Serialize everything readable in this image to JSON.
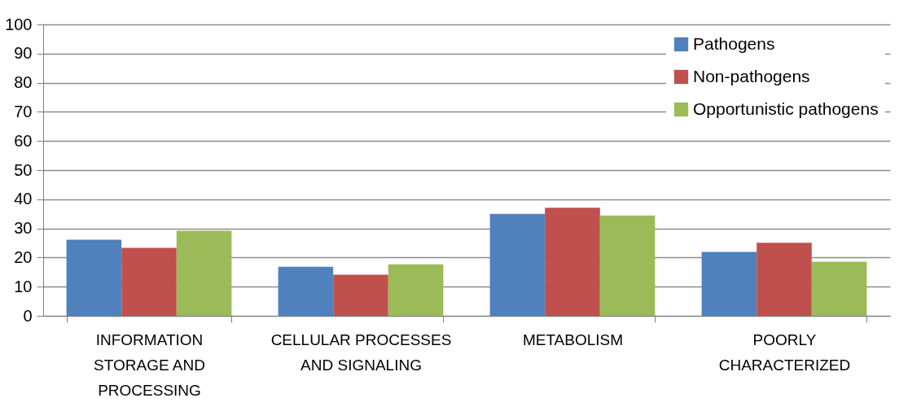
{
  "chart_data": {
    "type": "bar",
    "categories": [
      "INFORMATION STORAGE AND PROCESSING",
      "CELLULAR PROCESSES AND SIGNALING",
      "METABOLISM",
      "POORLY CHARACTERIZED"
    ],
    "series": [
      {
        "name": "Pathogens",
        "color": "#4f81bd",
        "values": [
          26.1,
          16.8,
          35.0,
          21.9
        ]
      },
      {
        "name": "Non-pathogens",
        "color": "#c0504d",
        "values": [
          23.3,
          14.1,
          37.1,
          25.1
        ]
      },
      {
        "name": "Opportunistic pathogens",
        "color": "#9bbb59",
        "values": [
          29.2,
          17.7,
          34.4,
          18.6
        ]
      }
    ],
    "ylim": [
      0,
      100
    ],
    "yticks": [
      0,
      10,
      20,
      30,
      40,
      50,
      60,
      70,
      80,
      90,
      100
    ],
    "grid": "y",
    "legend": "top right"
  }
}
